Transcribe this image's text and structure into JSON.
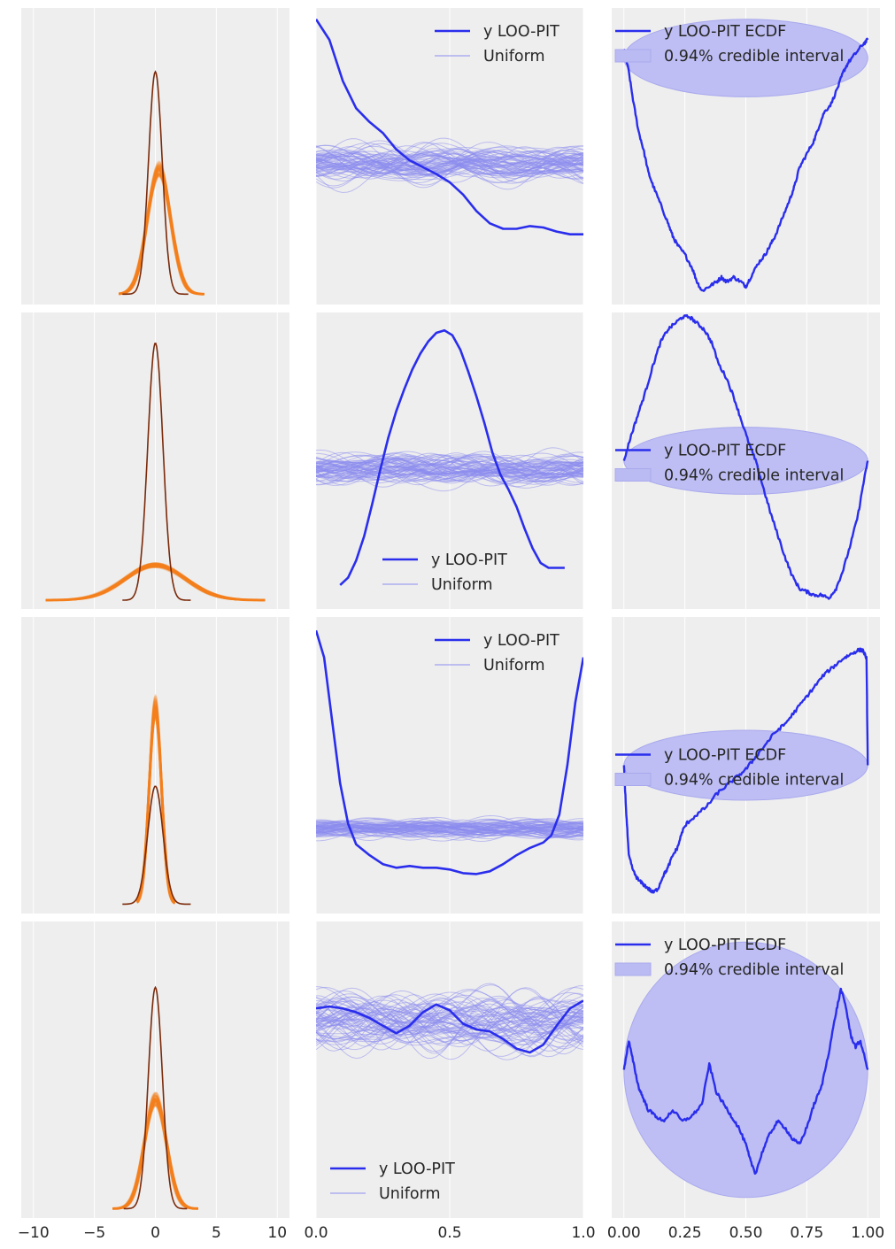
{
  "chart_data": {
    "type": "line",
    "layout": {
      "rows": 4,
      "cols": 3
    },
    "colors": {
      "panel_background": "#eeeeee",
      "grid": "#ffffff",
      "ppc_draws": "#f47e1b",
      "ppc_observed": "#7a2a0a",
      "loo_pit": "#2a2eec",
      "uniform_band": "#8c8cf0",
      "credible_interval_fill": "#bbbbf3",
      "credible_interval_edge": "#a9a9ee"
    },
    "columns": [
      {
        "kind": "ppc-density",
        "xlim": [
          -11,
          11
        ],
        "xticks": [
          -10,
          -5,
          0,
          5,
          10
        ],
        "xtick_labels": [
          "−10",
          "−5",
          "0",
          "5",
          "10"
        ]
      },
      {
        "kind": "loo-pit-kde",
        "xlim": [
          0,
          1
        ],
        "xticks": [
          0,
          0.5,
          1
        ],
        "xtick_labels": [
          "0.0",
          "0.5",
          "1.0"
        ]
      },
      {
        "kind": "loo-pit-ecdf",
        "xlim": [
          -0.05,
          1.05
        ],
        "xticks": [
          0,
          0.25,
          0.5,
          0.75,
          1
        ],
        "xtick_labels": [
          "0.00",
          "0.25",
          "0.50",
          "0.75",
          "1.00"
        ]
      }
    ],
    "legends": {
      "kde": [
        "y LOO-PIT",
        "Uniform"
      ],
      "ecdf": [
        "y LOO-PIT ECDF",
        "0.94% credible interval"
      ]
    },
    "rows": [
      {
        "ppc": {
          "ylim": [
            -0.02,
            0.95
          ],
          "draws": {
            "mean": 0.3,
            "sd": 0.95,
            "x_range": [
              -3,
              4
            ]
          },
          "observed": {
            "mean": 0,
            "sd": 0.9,
            "x_range": [
              -2.7,
              2.7
            ],
            "peak": 0.75
          }
        },
        "kde": {
          "ylim": [
            0,
            2.1
          ],
          "uniform_center": 1.0,
          "uniform_spread": 0.12,
          "legend": "upper-right",
          "x": [
            0,
            0.05,
            0.1,
            0.15,
            0.2,
            0.25,
            0.3,
            0.35,
            0.4,
            0.45,
            0.5,
            0.55,
            0.6,
            0.65,
            0.7,
            0.75,
            0.8,
            0.85,
            0.9,
            0.95,
            1.0
          ],
          "y": [
            2.05,
            1.9,
            1.6,
            1.4,
            1.3,
            1.22,
            1.1,
            1.02,
            0.97,
            0.92,
            0.86,
            0.77,
            0.65,
            0.56,
            0.52,
            0.52,
            0.54,
            0.53,
            0.5,
            0.48,
            0.48
          ]
        },
        "ecdf": {
          "ylim": [
            -0.45,
            0.18
          ],
          "ellipse": {
            "cx": 0.5,
            "cy": 0.08,
            "rx": 0.5,
            "ry": 0.085
          },
          "legend": "upper-left",
          "x": [
            0,
            0.02,
            0.04,
            0.06,
            0.08,
            0.1,
            0.12,
            0.15,
            0.18,
            0.2,
            0.22,
            0.25,
            0.28,
            0.3,
            0.32,
            0.35,
            0.38,
            0.4,
            0.42,
            0.45,
            0.48,
            0.5,
            0.52,
            0.55,
            0.58,
            0.6,
            0.62,
            0.65,
            0.68,
            0.7,
            0.72,
            0.75,
            0.78,
            0.8,
            0.82,
            0.85,
            0.88,
            0.9,
            0.92,
            0.95,
            0.98,
            1.0
          ],
          "y": [
            0.1,
            0.05,
            -0.02,
            -0.08,
            -0.12,
            -0.17,
            -0.2,
            -0.24,
            -0.28,
            -0.31,
            -0.33,
            -0.35,
            -0.38,
            -0.41,
            -0.43,
            -0.42,
            -0.41,
            -0.4,
            -0.41,
            -0.4,
            -0.41,
            -0.42,
            -0.4,
            -0.37,
            -0.35,
            -0.33,
            -0.31,
            -0.27,
            -0.23,
            -0.2,
            -0.16,
            -0.13,
            -0.1,
            -0.07,
            -0.04,
            -0.02,
            0.02,
            0.05,
            0.07,
            0.09,
            0.11,
            0.12
          ]
        }
      },
      {
        "ppc": {
          "ylim": [
            -0.02,
            1.3
          ],
          "draws": {
            "mean": 0,
            "sd": 2.5,
            "x_range": [
              -9,
              9
            ]
          },
          "observed": {
            "mean": 0,
            "sd": 1.0,
            "x_range": [
              -2.7,
              2.9
            ],
            "peak": 1.18
          }
        },
        "kde": {
          "ylim": [
            -0.1,
            2.25
          ],
          "uniform_center": 1.0,
          "uniform_spread": 0.12,
          "legend": "lower-center",
          "x": [
            0.09,
            0.12,
            0.15,
            0.18,
            0.21,
            0.24,
            0.27,
            0.3,
            0.33,
            0.36,
            0.39,
            0.42,
            0.45,
            0.48,
            0.51,
            0.54,
            0.57,
            0.6,
            0.63,
            0.66,
            0.69,
            0.72,
            0.75,
            0.78,
            0.81,
            0.84,
            0.87,
            0.9,
            0.93
          ],
          "y": [
            0.06,
            0.12,
            0.26,
            0.46,
            0.72,
            1.0,
            1.26,
            1.48,
            1.66,
            1.82,
            1.95,
            2.05,
            2.12,
            2.14,
            2.1,
            1.98,
            1.8,
            1.6,
            1.38,
            1.14,
            0.96,
            0.84,
            0.7,
            0.52,
            0.36,
            0.24,
            0.2,
            0.2,
            0.2
          ]
        },
        "ecdf": {
          "ylim": [
            -0.45,
            0.45
          ],
          "ellipse": {
            "cx": 0.5,
            "cy": 0.0,
            "rx": 0.5,
            "ry": 0.105
          },
          "legend": "center-left",
          "x": [
            0,
            0.03,
            0.06,
            0.09,
            0.12,
            0.15,
            0.18,
            0.21,
            0.24,
            0.27,
            0.3,
            0.33,
            0.36,
            0.39,
            0.42,
            0.45,
            0.48,
            0.51,
            0.54,
            0.57,
            0.6,
            0.63,
            0.66,
            0.69,
            0.72,
            0.75,
            0.78,
            0.81,
            0.84,
            0.87,
            0.9,
            0.93,
            0.96,
            0.98,
            1.0
          ],
          "y": [
            0.0,
            0.08,
            0.15,
            0.22,
            0.3,
            0.37,
            0.41,
            0.43,
            0.45,
            0.45,
            0.43,
            0.41,
            0.37,
            0.3,
            0.26,
            0.2,
            0.13,
            0.06,
            0.0,
            -0.08,
            -0.16,
            -0.23,
            -0.3,
            -0.36,
            -0.4,
            -0.41,
            -0.42,
            -0.42,
            -0.43,
            -0.4,
            -0.34,
            -0.26,
            -0.17,
            -0.08,
            0.0
          ]
        }
      },
      {
        "ppc": {
          "ylim": [
            -0.02,
            1.15
          ],
          "draws": {
            "mean": 0,
            "sd": 0.5,
            "x_range": [
              -1.5,
              1.6
            ]
          },
          "observed": {
            "mean": 0,
            "sd": 1.0,
            "x_range": [
              -2.7,
              2.9
            ],
            "peak": 0.48
          }
        },
        "kde": {
          "ylim": [
            0,
            3.2
          ],
          "uniform_center": 0.9,
          "uniform_spread": 0.1,
          "legend": "upper-right",
          "x": [
            0,
            0.03,
            0.06,
            0.09,
            0.12,
            0.15,
            0.2,
            0.25,
            0.3,
            0.35,
            0.4,
            0.45,
            0.5,
            0.55,
            0.6,
            0.65,
            0.7,
            0.75,
            0.8,
            0.85,
            0.88,
            0.91,
            0.94,
            0.97,
            1.0
          ],
          "y": [
            3.1,
            2.8,
            2.1,
            1.4,
            0.95,
            0.72,
            0.6,
            0.5,
            0.46,
            0.48,
            0.46,
            0.46,
            0.44,
            0.4,
            0.39,
            0.42,
            0.5,
            0.6,
            0.68,
            0.74,
            0.82,
            1.05,
            1.6,
            2.3,
            2.8
          ]
        },
        "ecdf": {
          "ylim": [
            -0.35,
            0.35
          ],
          "ellipse": {
            "cx": 0.5,
            "cy": 0.0,
            "rx": 0.5,
            "ry": 0.085
          },
          "legend": "center-left",
          "x": [
            0,
            0.01,
            0.02,
            0.04,
            0.06,
            0.08,
            0.1,
            0.12,
            0.14,
            0.16,
            0.18,
            0.2,
            0.22,
            0.24,
            0.26,
            0.3,
            0.34,
            0.38,
            0.42,
            0.46,
            0.5,
            0.54,
            0.58,
            0.62,
            0.66,
            0.7,
            0.74,
            0.78,
            0.82,
            0.86,
            0.9,
            0.93,
            0.96,
            0.98,
            0.995,
            1.0
          ],
          "y": [
            0.0,
            -0.12,
            -0.22,
            -0.26,
            -0.28,
            -0.29,
            -0.3,
            -0.31,
            -0.3,
            -0.27,
            -0.25,
            -0.22,
            -0.2,
            -0.16,
            -0.14,
            -0.12,
            -0.1,
            -0.07,
            -0.05,
            -0.03,
            -0.01,
            0.02,
            0.05,
            0.08,
            0.1,
            0.13,
            0.16,
            0.19,
            0.22,
            0.24,
            0.26,
            0.27,
            0.28,
            0.28,
            0.26,
            0.0
          ]
        }
      },
      {
        "ppc": {
          "ylim": [
            -0.02,
            1.15
          ],
          "draws": {
            "mean": 0,
            "sd": 0.9,
            "x_range": [
              -3.5,
              3.5
            ]
          },
          "observed": {
            "mean": 0,
            "sd": 0.92,
            "x_range": [
              -2.6,
              2.6
            ],
            "peak": 0.9
          }
        },
        "kde": {
          "ylim": [
            0,
            1.5
          ],
          "uniform_center": 1.0,
          "uniform_spread": 0.15,
          "legend": "lower-left",
          "x": [
            0,
            0.05,
            0.1,
            0.15,
            0.2,
            0.25,
            0.3,
            0.35,
            0.4,
            0.45,
            0.5,
            0.55,
            0.6,
            0.65,
            0.7,
            0.75,
            0.8,
            0.85,
            0.9,
            0.95,
            1.0
          ],
          "y": [
            1.07,
            1.08,
            1.07,
            1.05,
            1.02,
            0.98,
            0.94,
            0.98,
            1.05,
            1.09,
            1.06,
            0.99,
            0.96,
            0.95,
            0.91,
            0.86,
            0.84,
            0.88,
            0.98,
            1.07,
            1.11
          ]
        },
        "ecdf": {
          "ylim": [
            -0.25,
            0.25
          ],
          "ellipse": {
            "cx": 0.5,
            "cy": 0.0,
            "rx": 0.5,
            "ry": 0.222
          },
          "legend": "upper-left",
          "x": [
            0,
            0.02,
            0.04,
            0.06,
            0.08,
            0.1,
            0.13,
            0.16,
            0.2,
            0.24,
            0.28,
            0.32,
            0.35,
            0.38,
            0.41,
            0.44,
            0.47,
            0.5,
            0.52,
            0.54,
            0.57,
            0.6,
            0.63,
            0.66,
            0.69,
            0.72,
            0.75,
            0.78,
            0.81,
            0.84,
            0.87,
            0.89,
            0.91,
            0.93,
            0.95,
            0.97,
            1.0
          ],
          "y": [
            0.0,
            0.05,
            0.01,
            -0.03,
            -0.05,
            -0.07,
            -0.08,
            -0.09,
            -0.07,
            -0.09,
            -0.08,
            -0.06,
            0.01,
            -0.04,
            -0.06,
            -0.08,
            -0.1,
            -0.13,
            -0.16,
            -0.18,
            -0.14,
            -0.11,
            -0.09,
            -0.1,
            -0.12,
            -0.13,
            -0.1,
            -0.06,
            -0.03,
            0.03,
            0.1,
            0.14,
            0.11,
            0.06,
            0.04,
            0.05,
            0.0
          ]
        }
      }
    ]
  }
}
